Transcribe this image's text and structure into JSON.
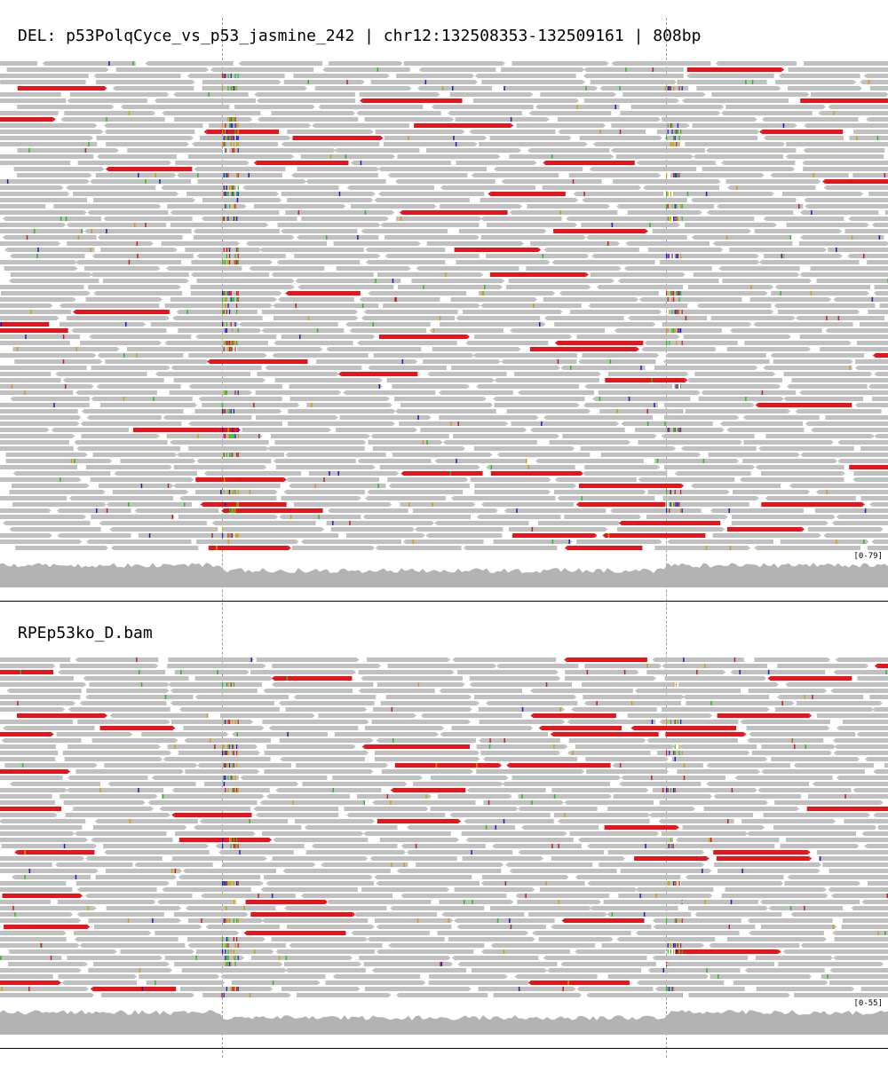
{
  "panels": [
    {
      "title": "DEL: p53PolqCyce_vs_p53_jasmine_242 | chr12:132508353-132509161 | 808bp",
      "coverage_range": "[0-79]"
    },
    {
      "title": "RPEp53ko_D.bam",
      "coverage_range": "[0-55]"
    }
  ],
  "colors": {
    "read": "#c0c0c0",
    "discordant": "#e8141b",
    "coverage": "#b3b3b3",
    "mismatch_a": "#22c022",
    "mismatch_c": "#1a1ad0",
    "mismatch_g": "#d1a000",
    "mismatch_t": "#d01a1a",
    "guide": "#a0a0a0"
  }
}
